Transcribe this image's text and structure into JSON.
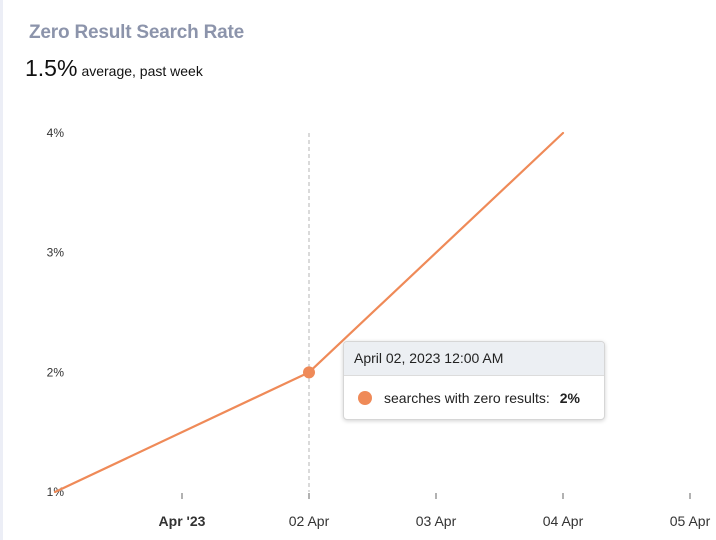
{
  "header": {
    "title": "Zero Result Search Rate",
    "average_value": "1.5%",
    "average_label": "average, past week"
  },
  "chart_data": {
    "type": "line",
    "series": [
      {
        "name": "searches with zero results",
        "points": [
          {
            "x": "2023-03-31",
            "y": 1
          },
          {
            "x": "2023-04-02",
            "y": 2
          },
          {
            "x": "2023-04-04",
            "y": 4
          }
        ]
      }
    ],
    "ylim": [
      1,
      4
    ],
    "y_ticks": [
      {
        "value": 1,
        "label": "1%"
      },
      {
        "value": 2,
        "label": "2%"
      },
      {
        "value": 3,
        "label": "3%"
      },
      {
        "value": 4,
        "label": "4%"
      }
    ],
    "x_ticks": [
      {
        "x": "2023-04-01",
        "label": "Apr '23",
        "bold": true
      },
      {
        "x": "2023-04-02",
        "label": "02 Apr",
        "bold": false
      },
      {
        "x": "2023-04-03",
        "label": "03 Apr",
        "bold": false
      },
      {
        "x": "2023-04-04",
        "label": "04 Apr",
        "bold": false
      },
      {
        "x": "2023-04-05",
        "label": "05 Apr",
        "bold": false
      }
    ],
    "hover_x": "2023-04-02",
    "line_color": "#ef8a58",
    "grid": false
  },
  "tooltip": {
    "title": "April 02, 2023 12:00 AM",
    "series_label": "searches with zero results:",
    "value": "2%"
  }
}
